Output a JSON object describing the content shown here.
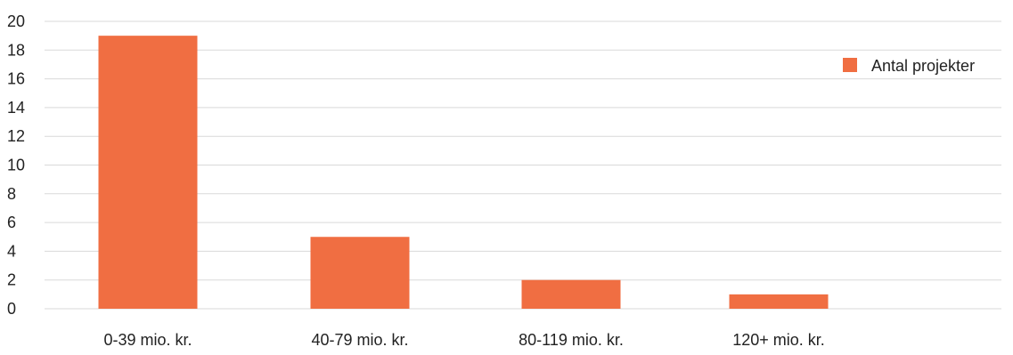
{
  "chart_data": {
    "type": "bar",
    "categories": [
      "0-39 mio. kr.",
      "40-79 mio. kr.",
      "80-119 mio. kr.",
      "120+ mio. kr."
    ],
    "series": [
      {
        "name": "Antal projekter",
        "values": [
          19,
          5,
          2,
          1
        ]
      }
    ],
    "ylim": [
      0,
      20
    ],
    "yticks": [
      0,
      2,
      4,
      6,
      8,
      10,
      12,
      14,
      16,
      18,
      20
    ],
    "grid": true,
    "legend_position": "right",
    "colors": {
      "bar": "#f06e42",
      "grid": "#d9d9d9",
      "text": "#222222"
    }
  }
}
